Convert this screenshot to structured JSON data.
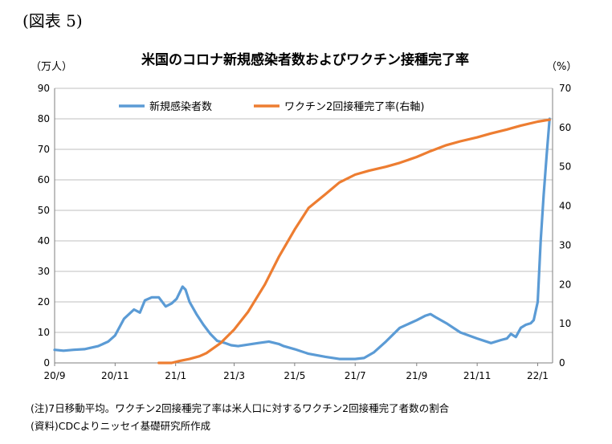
{
  "figure_label": "(図表 5)",
  "title": "米国のコロナ新規感染者数およびワクチン接種完了率",
  "unit_left": "（万人）",
  "unit_right": "（%）",
  "notes": [
    "(注)7日移動平均。ワクチン2回接種完了率は米人口に対するワクチン2回接種完了者数の割合",
    "(資料)CDCよりニッセイ基礎研究所作成"
  ],
  "colors": {
    "cases": "#5b9bd5",
    "vaccine": "#ed7d31",
    "grid": "#bfbfbf"
  },
  "chart_data": {
    "type": "line",
    "x_tick_labels": [
      "20/9",
      "20/11",
      "21/1",
      "21/3",
      "21/5",
      "21/7",
      "21/9",
      "21/11",
      "22/1"
    ],
    "y_left": {
      "ylim": [
        0,
        90
      ],
      "ticks": [
        0,
        10,
        20,
        30,
        40,
        50,
        60,
        70,
        80,
        90
      ]
    },
    "y_right": {
      "ylim": [
        0,
        70
      ],
      "ticks": [
        0,
        10,
        20,
        30,
        40,
        50,
        60,
        70
      ]
    },
    "grid": "horizontal",
    "legend": "top",
    "series": [
      {
        "name": "新規感染者数",
        "axis": "left",
        "x": [
          "2020-09-01",
          "2020-09-10",
          "2020-09-20",
          "2020-10-01",
          "2020-10-15",
          "2020-10-25",
          "2020-11-01",
          "2020-11-10",
          "2020-11-20",
          "2020-11-26",
          "2020-12-01",
          "2020-12-08",
          "2020-12-15",
          "2020-12-22",
          "2020-12-28",
          "2021-01-02",
          "2021-01-05",
          "2021-01-08",
          "2021-01-11",
          "2021-01-15",
          "2021-01-22",
          "2021-01-29",
          "2021-02-05",
          "2021-02-12",
          "2021-02-19",
          "2021-02-26",
          "2021-03-05",
          "2021-03-15",
          "2021-03-25",
          "2021-04-05",
          "2021-04-15",
          "2021-04-20",
          "2021-05-01",
          "2021-05-15",
          "2021-06-01",
          "2021-06-15",
          "2021-07-01",
          "2021-07-10",
          "2021-07-20",
          "2021-08-01",
          "2021-08-15",
          "2021-09-01",
          "2021-09-10",
          "2021-09-15",
          "2021-09-20",
          "2021-10-01",
          "2021-10-15",
          "2021-11-01",
          "2021-11-15",
          "2021-11-25",
          "2021-12-01",
          "2021-12-05",
          "2021-12-10",
          "2021-12-15",
          "2021-12-20",
          "2021-12-25",
          "2021-12-28",
          "2022-01-01",
          "2022-01-04",
          "2022-01-07",
          "2022-01-10",
          "2022-01-13"
        ],
        "values": [
          4.3,
          4.0,
          4.3,
          4.5,
          5.5,
          7.0,
          9.0,
          14.5,
          17.5,
          16.5,
          20.5,
          21.5,
          21.5,
          18.5,
          19.5,
          21.0,
          23.0,
          25.0,
          24.0,
          20.0,
          16.0,
          12.5,
          9.5,
          7.2,
          6.6,
          5.8,
          5.5,
          6.0,
          6.5,
          7.0,
          6.2,
          5.5,
          4.5,
          3.0,
          2.0,
          1.3,
          1.3,
          1.6,
          3.5,
          7.0,
          11.5,
          14.0,
          15.5,
          16.0,
          15.0,
          13.0,
          10.0,
          8.0,
          6.5,
          7.5,
          8.0,
          9.5,
          8.5,
          11.5,
          12.5,
          13.0,
          14.0,
          20.0,
          40.0,
          55.0,
          68.0,
          80.0
        ]
      },
      {
        "name": "ワクチン2回接種完了率(右軸)",
        "axis": "right",
        "x": [
          "2020-12-15",
          "2020-12-28",
          "2021-01-05",
          "2021-01-15",
          "2021-01-25",
          "2021-02-01",
          "2021-02-15",
          "2021-03-01",
          "2021-03-15",
          "2021-04-01",
          "2021-04-15",
          "2021-05-01",
          "2021-05-15",
          "2021-06-01",
          "2021-06-15",
          "2021-07-01",
          "2021-07-15",
          "2021-08-01",
          "2021-08-15",
          "2021-09-01",
          "2021-09-15",
          "2021-10-01",
          "2021-10-15",
          "2021-11-01",
          "2021-11-15",
          "2021-12-01",
          "2021-12-15",
          "2022-01-01",
          "2022-01-13"
        ],
        "values": [
          0,
          0,
          0.5,
          1.0,
          1.7,
          2.5,
          5.0,
          8.5,
          13.0,
          20.0,
          27.0,
          34.0,
          39.5,
          43.0,
          46.0,
          48.0,
          49.0,
          50.0,
          51.0,
          52.5,
          54.0,
          55.5,
          56.5,
          57.5,
          58.5,
          59.5,
          60.5,
          61.5,
          62.0
        ]
      }
    ]
  }
}
